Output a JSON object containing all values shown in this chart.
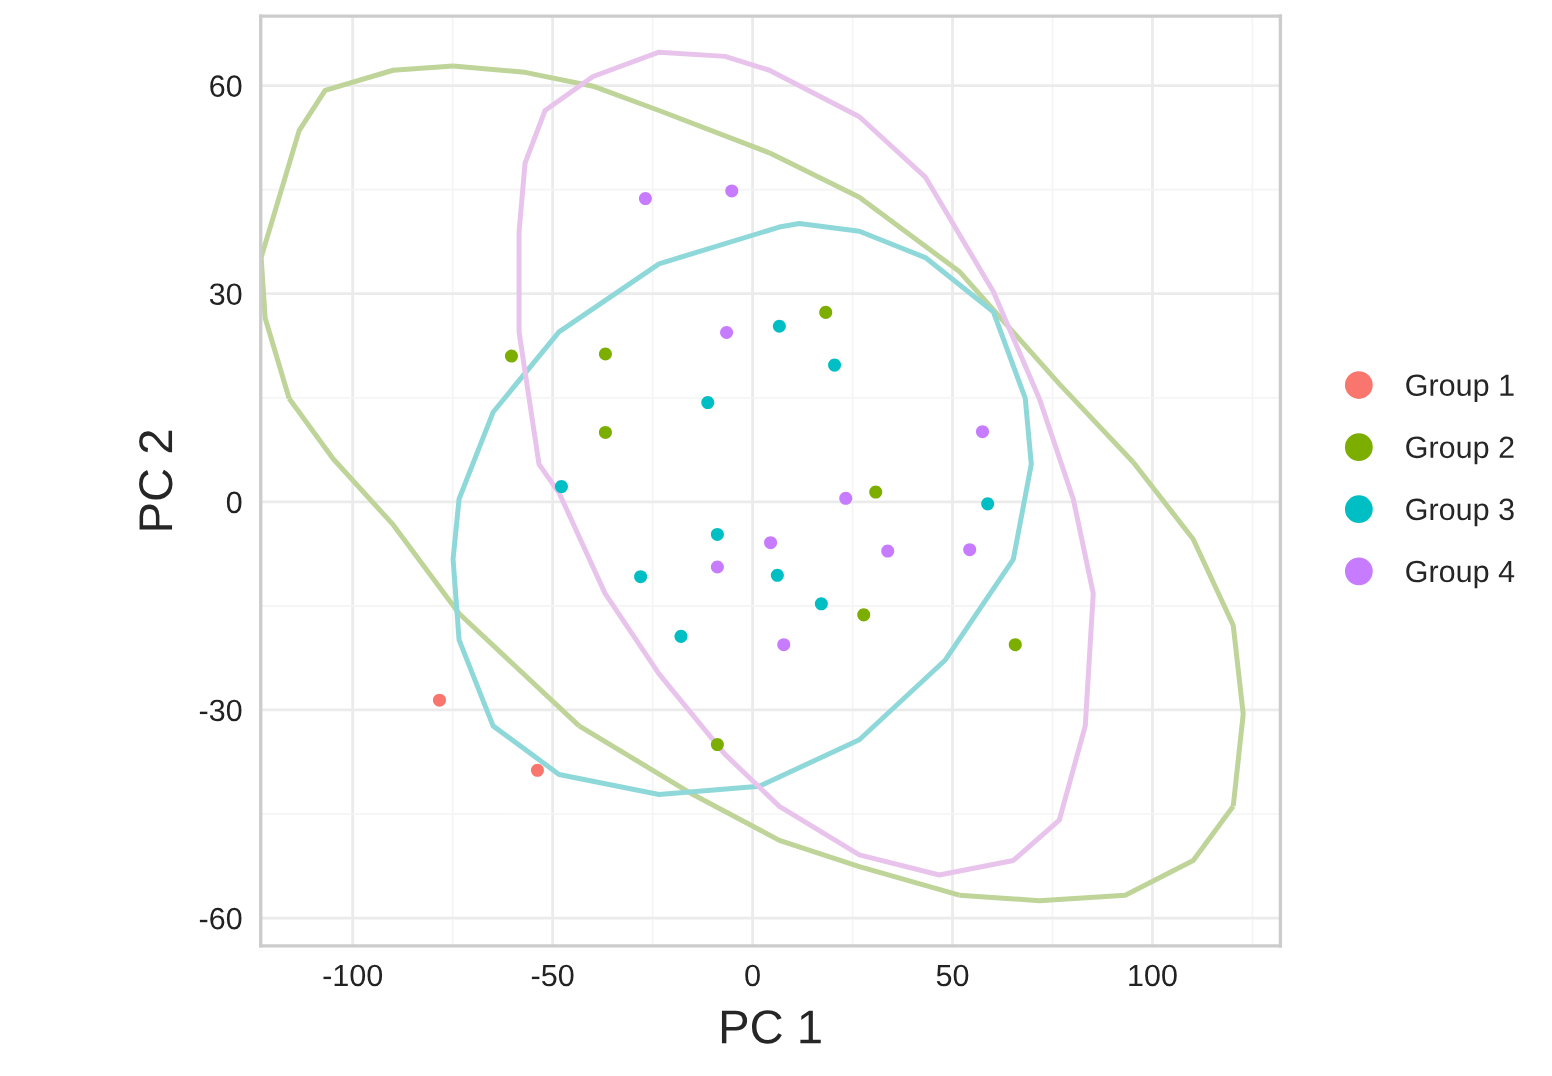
{
  "chart_data": {
    "type": "scatter",
    "xlabel": "PC 1",
    "ylabel": "PC 2",
    "xlim": [
      -123,
      132
    ],
    "ylim": [
      -64,
      70
    ],
    "xticks": [
      -100,
      -50,
      0,
      50,
      100
    ],
    "yticks": [
      -60,
      -30,
      0,
      30,
      60
    ],
    "grid": true,
    "legend": "right",
    "marker": "circle",
    "series": [
      {
        "name": "Group 1",
        "color": "#f8766d",
        "x": [
          -78.3,
          -53.8
        ],
        "values": [
          -28.6,
          -38.7
        ]
      },
      {
        "name": "Group 2",
        "color": "#7cae00",
        "x": [
          -60.3,
          -36.8,
          -36.8,
          18.3,
          30.8,
          27.8,
          65.7,
          -8.8
        ],
        "values": [
          21.0,
          21.3,
          10.0,
          27.3,
          1.4,
          -16.3,
          -20.6,
          -35.0
        ]
      },
      {
        "name": "Group 3",
        "color": "#00bfc4",
        "x": [
          -47.8,
          -8.8,
          -28.0,
          -17.9,
          6.2,
          17.2,
          58.8,
          6.7,
          20.5,
          -11.2
        ],
        "values": [
          2.2,
          -4.7,
          -10.8,
          -19.4,
          -10.6,
          -14.7,
          -0.3,
          25.3,
          19.7,
          14.3
        ]
      },
      {
        "name": "Group 4",
        "color": "#c77cff",
        "x": [
          -26.8,
          -5.2,
          -6.5,
          57.5,
          23.3,
          4.5,
          -8.8,
          33.8,
          54.3,
          7.8
        ],
        "values": [
          43.7,
          44.8,
          24.4,
          10.1,
          0.5,
          -5.9,
          -9.4,
          -7.1,
          -6.9,
          -20.6
        ]
      }
    ]
  }
}
